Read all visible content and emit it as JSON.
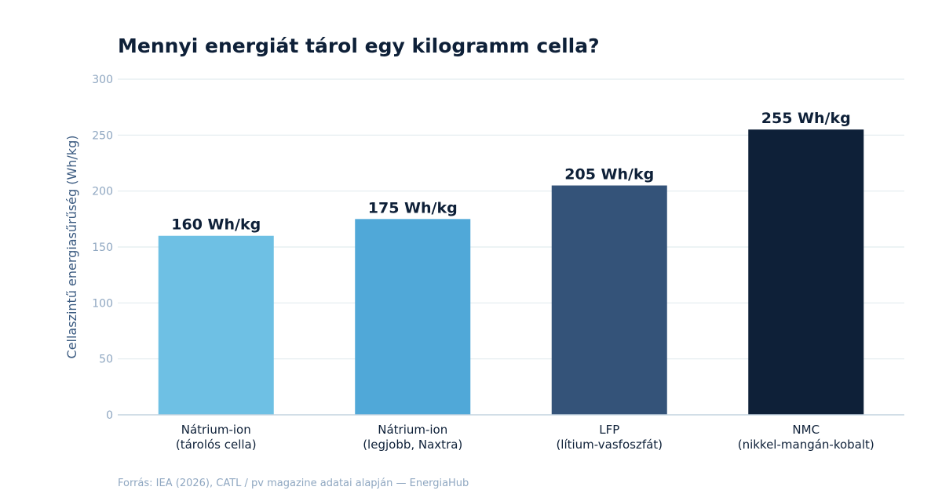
{
  "title": "Mennyi energiát tárol egy kilogramm cella?",
  "footer": "Forrás: IEA (2026), CATL / pv magazine adatai alapján — EnergiaHub",
  "chart_data": {
    "type": "bar",
    "title": "Mennyi energiát tárol egy kilogramm cella?",
    "xlabel": "",
    "ylabel": "Cellaszintű energiasűrűség (Wh/kg)",
    "ylim": [
      0,
      300
    ],
    "yticks": [
      0,
      50,
      100,
      150,
      200,
      250,
      300
    ],
    "grid": true,
    "categories": [
      [
        "Nátrium-ion",
        "(tárolós cella)"
      ],
      [
        "Nátrium-ion",
        "(legjobb, Naxtra)"
      ],
      [
        "LFP",
        "(lítium-vasfoszfát)"
      ],
      [
        "NMC",
        "(nikkel-mangán-kobalt)"
      ]
    ],
    "values": [
      160,
      175,
      205,
      255
    ],
    "data_labels": [
      "160 Wh/kg",
      "175 Wh/kg",
      "205 Wh/kg",
      "255 Wh/kg"
    ],
    "bar_colors": [
      "#6ec0e4",
      "#50a8d8",
      "#345379",
      "#0e2038"
    ]
  },
  "colors": {
    "title": "#0e2038",
    "axis_label": "#3a5a80",
    "tick_label": "#8fa7c1",
    "grid": "#e2ecef",
    "baseline": "#c3d3df",
    "category_label": "#0e2038"
  }
}
